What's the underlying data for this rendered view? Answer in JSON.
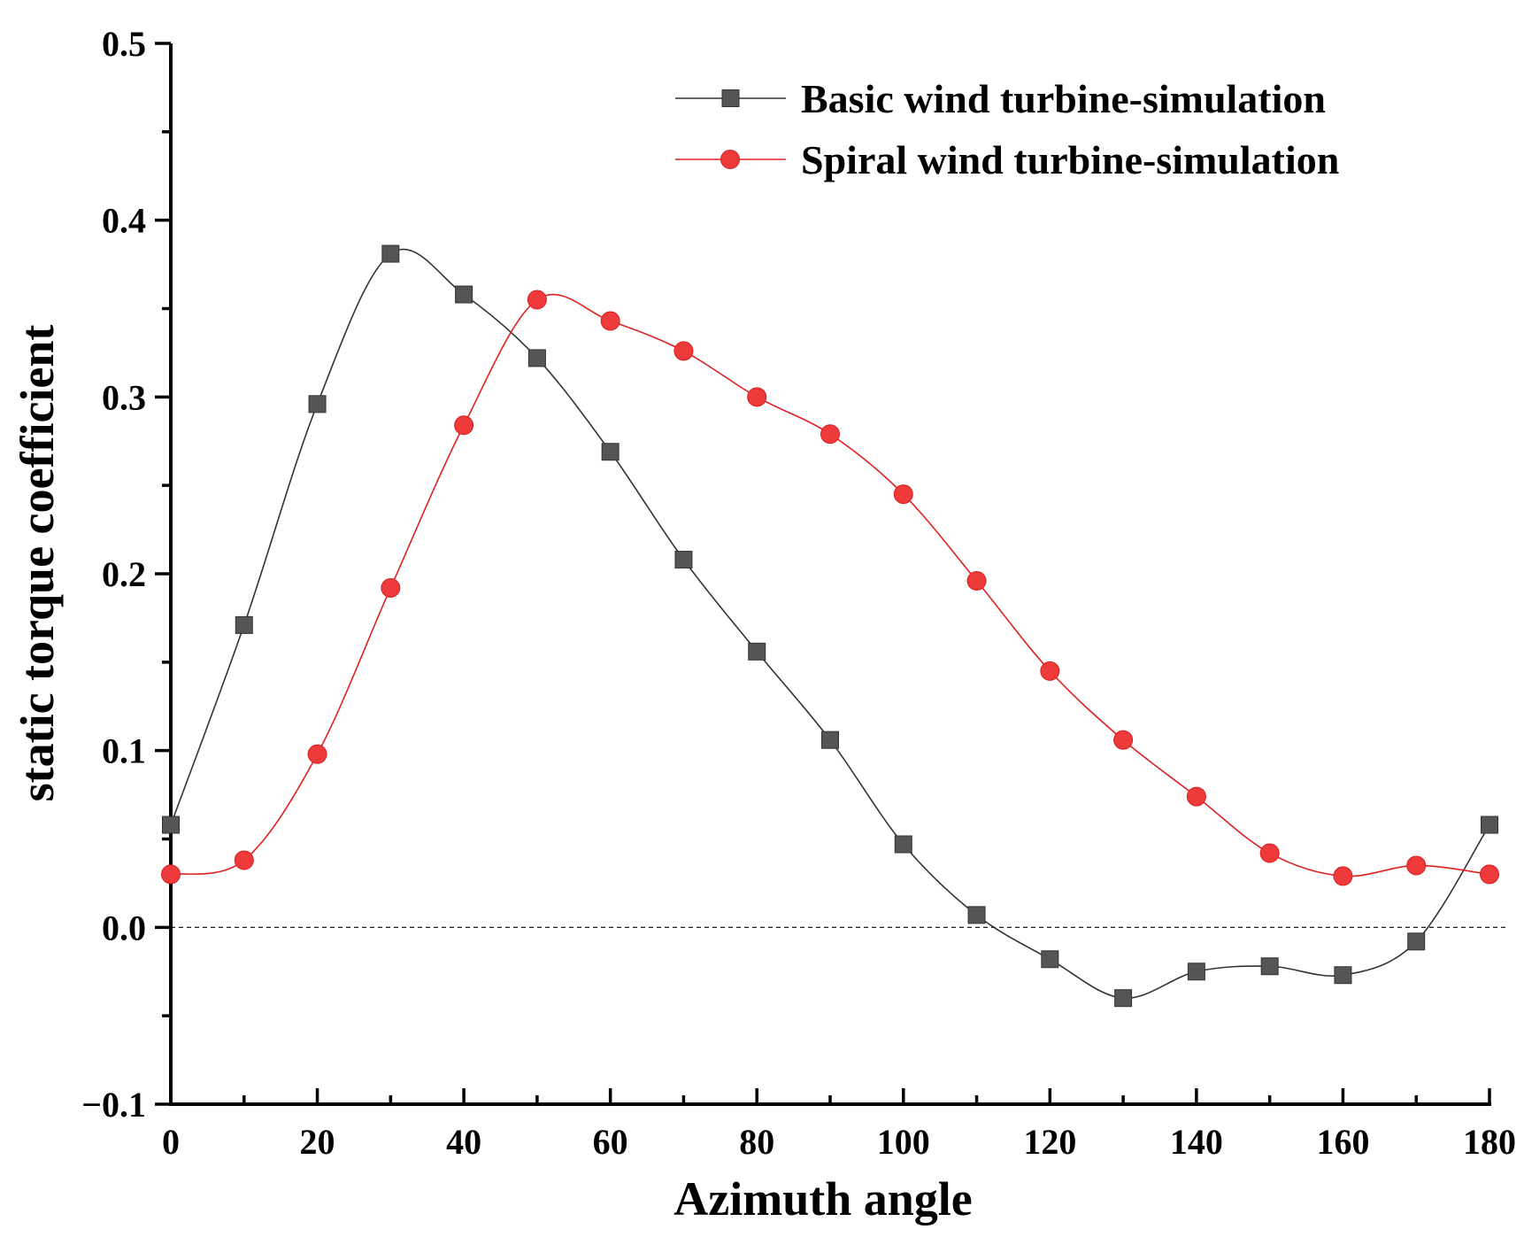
{
  "chart_data": {
    "type": "line",
    "title": "",
    "xlabel": "Azimuth angle",
    "ylabel": "static torque coefficient",
    "xlim": [
      0,
      180
    ],
    "ylim": [
      -0.1,
      0.5
    ],
    "x_ticks": [
      "0",
      "20",
      "40",
      "60",
      "80",
      "100",
      "120",
      "140",
      "160",
      "180"
    ],
    "y_ticks": [
      "−0.1",
      "0.0",
      "0.1",
      "0.2",
      "0.3",
      "0.4",
      "0.5"
    ],
    "reference_line": {
      "y": 0.0,
      "style": "dashed"
    },
    "legend_position": "top-right",
    "x": [
      0,
      10,
      20,
      30,
      40,
      50,
      60,
      70,
      80,
      90,
      100,
      110,
      120,
      130,
      140,
      150,
      160,
      170,
      180
    ],
    "series": [
      {
        "name": "Basic wind turbine-simulation",
        "color": "#555555",
        "line_color": "#333333",
        "marker": "square",
        "values": [
          0.058,
          0.171,
          0.296,
          0.381,
          0.358,
          0.322,
          0.269,
          0.208,
          0.156,
          0.106,
          0.047,
          0.007,
          -0.018,
          -0.04,
          -0.025,
          -0.022,
          -0.027,
          -0.008,
          0.058
        ]
      },
      {
        "name": "Spiral wind turbine-simulation",
        "color": "#ee3a3a",
        "line_color": "#e02020",
        "marker": "circle",
        "values": [
          0.03,
          0.038,
          0.098,
          0.192,
          0.284,
          0.355,
          0.343,
          0.326,
          0.3,
          0.279,
          0.245,
          0.196,
          0.145,
          0.106,
          0.074,
          0.042,
          0.029,
          0.035,
          0.03
        ]
      }
    ]
  }
}
